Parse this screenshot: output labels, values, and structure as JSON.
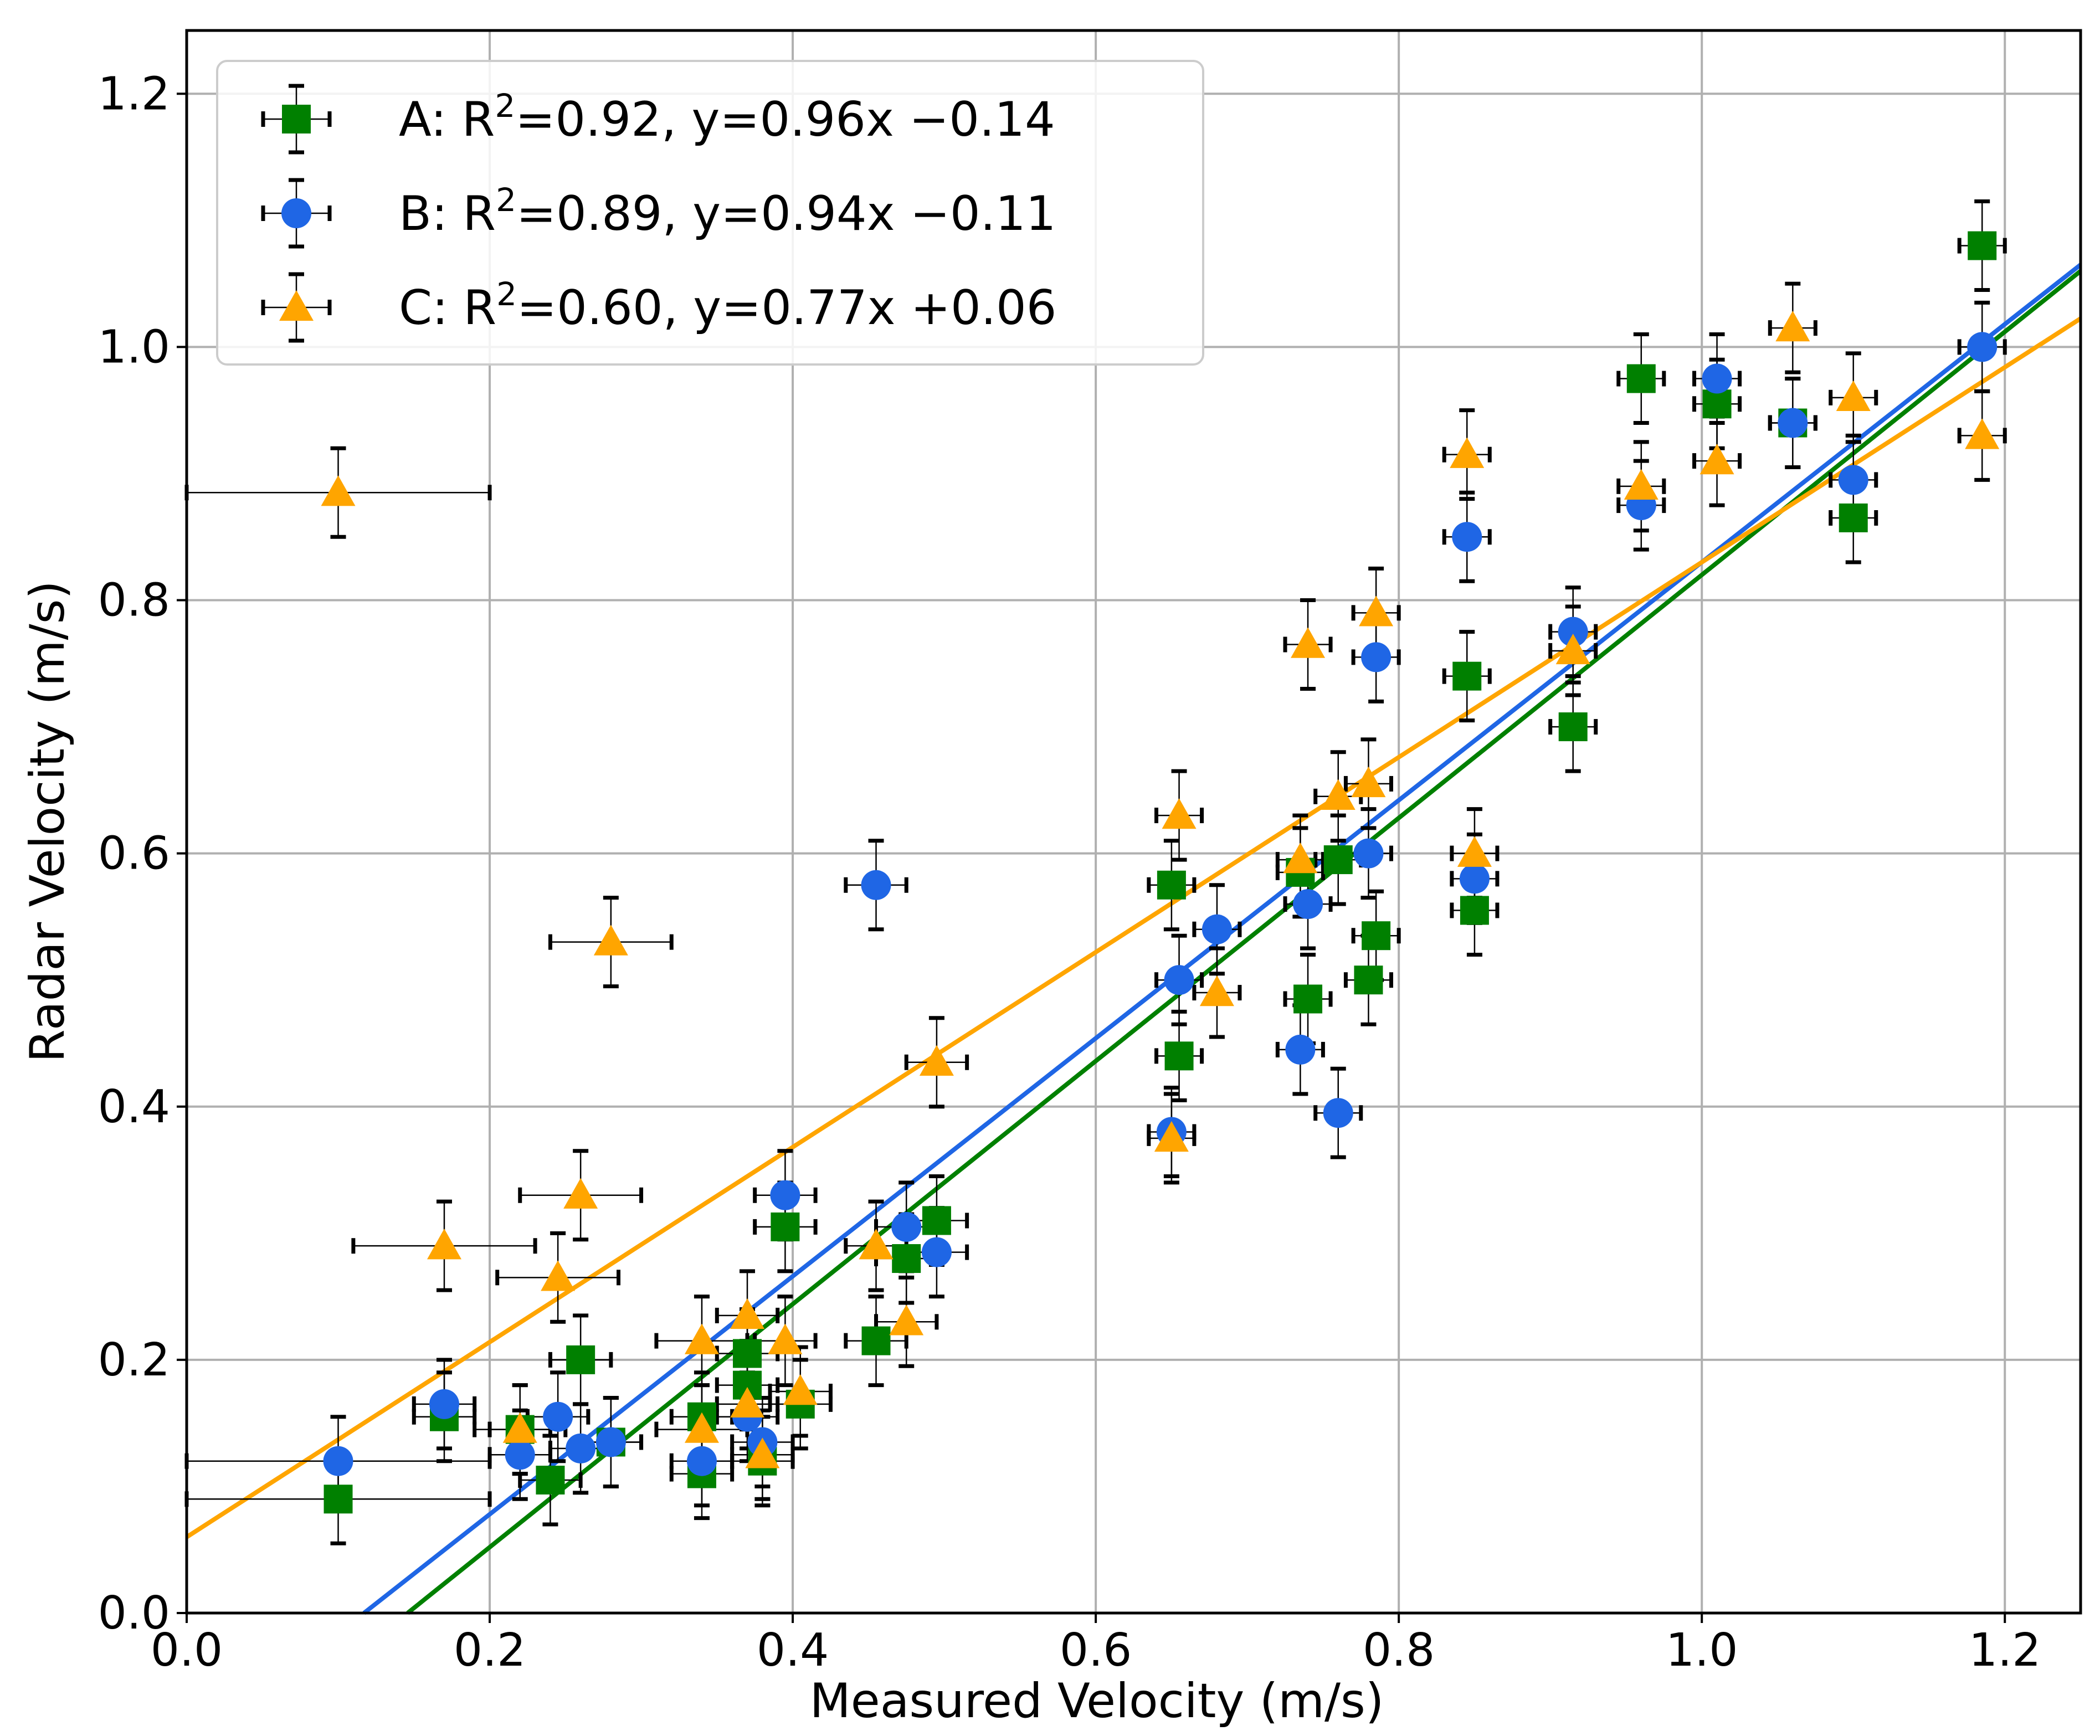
{
  "chart_data": {
    "type": "scatter",
    "xlabel": "Measured Velocity (m/s)",
    "ylabel": "Radar Velocity (m/s)",
    "xlim": [
      0.0,
      1.25
    ],
    "ylim": [
      0.0,
      1.25
    ],
    "xticks": [
      "0.0",
      "0.2",
      "0.4",
      "0.6",
      "0.8",
      "1.0",
      "1.2"
    ],
    "yticks": [
      "0.0",
      "0.2",
      "0.4",
      "0.6",
      "0.8",
      "1.0",
      "1.2"
    ],
    "grid": true,
    "legend_position": "top-left",
    "series": [
      {
        "name": "A",
        "color": "#008000",
        "marker": "square",
        "legend_prefix": "A: R",
        "r2": "=0.92, y=0.96x −0.14",
        "fit": {
          "slope": 0.96,
          "intercept": -0.14
        },
        "points": [
          [
            0.1,
            0.09,
            0.1
          ],
          [
            0.17,
            0.155,
            0.02
          ],
          [
            0.22,
            0.145,
            0.02
          ],
          [
            0.24,
            0.105,
            0.02
          ],
          [
            0.26,
            0.2,
            0.02
          ],
          [
            0.28,
            0.135,
            0.02
          ],
          [
            0.34,
            0.155,
            0.02
          ],
          [
            0.34,
            0.11,
            0.02
          ],
          [
            0.37,
            0.205,
            0.02
          ],
          [
            0.37,
            0.18,
            0.02
          ],
          [
            0.38,
            0.12,
            0.02
          ],
          [
            0.395,
            0.305,
            0.02
          ],
          [
            0.405,
            0.165,
            0.02
          ],
          [
            0.455,
            0.215,
            0.02
          ],
          [
            0.475,
            0.28,
            0.02
          ],
          [
            0.495,
            0.31,
            0.02
          ],
          [
            0.65,
            0.575,
            0.015
          ],
          [
            0.655,
            0.44,
            0.015
          ],
          [
            0.74,
            0.485,
            0.015
          ],
          [
            0.735,
            0.585,
            0.015
          ],
          [
            0.76,
            0.595,
            0.015
          ],
          [
            0.78,
            0.5,
            0.015
          ],
          [
            0.785,
            0.535,
            0.015
          ],
          [
            0.845,
            0.74,
            0.015
          ],
          [
            0.85,
            0.555,
            0.015
          ],
          [
            0.915,
            0.7,
            0.015
          ],
          [
            0.96,
            0.975,
            0.015
          ],
          [
            1.01,
            0.955,
            0.015
          ],
          [
            1.06,
            0.94,
            0.015
          ],
          [
            1.1,
            0.865,
            0.015
          ],
          [
            1.185,
            1.08,
            0.015
          ]
        ]
      },
      {
        "name": "B",
        "color": "#1f66e5",
        "marker": "circle",
        "legend_prefix": "B: R",
        "r2": "=0.89, y=0.94x −0.11",
        "fit": {
          "slope": 0.94,
          "intercept": -0.11
        },
        "points": [
          [
            0.1,
            0.12,
            0.1
          ],
          [
            0.17,
            0.165,
            0.02
          ],
          [
            0.22,
            0.125,
            0.02
          ],
          [
            0.245,
            0.155,
            0.02
          ],
          [
            0.26,
            0.13,
            0.02
          ],
          [
            0.28,
            0.135,
            0.02
          ],
          [
            0.34,
            0.12,
            0.02
          ],
          [
            0.37,
            0.155,
            0.02
          ],
          [
            0.38,
            0.135,
            0.02
          ],
          [
            0.395,
            0.33,
            0.02
          ],
          [
            0.455,
            0.575,
            0.02
          ],
          [
            0.475,
            0.305,
            0.02
          ],
          [
            0.495,
            0.285,
            0.02
          ],
          [
            0.65,
            0.38,
            0.015
          ],
          [
            0.655,
            0.5,
            0.015
          ],
          [
            0.68,
            0.54,
            0.015
          ],
          [
            0.735,
            0.445,
            0.015
          ],
          [
            0.74,
            0.56,
            0.015
          ],
          [
            0.76,
            0.395,
            0.015
          ],
          [
            0.78,
            0.6,
            0.015
          ],
          [
            0.785,
            0.755,
            0.015
          ],
          [
            0.845,
            0.85,
            0.015
          ],
          [
            0.85,
            0.58,
            0.015
          ],
          [
            0.915,
            0.775,
            0.015
          ],
          [
            0.96,
            0.875,
            0.015
          ],
          [
            1.01,
            0.975,
            0.015
          ],
          [
            1.06,
            0.94,
            0.015
          ],
          [
            1.1,
            0.895,
            0.015
          ],
          [
            1.185,
            1.0,
            0.015
          ]
        ]
      },
      {
        "name": "C",
        "color": "#ffa500",
        "marker": "triangle",
        "legend_prefix": "C: R",
        "r2": "=0.60, y=0.77x +0.06",
        "fit": {
          "slope": 0.77,
          "intercept": 0.06
        },
        "points": [
          [
            0.1,
            0.885,
            0.1
          ],
          [
            0.17,
            0.29,
            0.06
          ],
          [
            0.22,
            0.145,
            0.03
          ],
          [
            0.245,
            0.265,
            0.04
          ],
          [
            0.26,
            0.33,
            0.04
          ],
          [
            0.28,
            0.53,
            0.04
          ],
          [
            0.34,
            0.215,
            0.03
          ],
          [
            0.34,
            0.145,
            0.03
          ],
          [
            0.37,
            0.235,
            0.02
          ],
          [
            0.37,
            0.165,
            0.02
          ],
          [
            0.38,
            0.125,
            0.02
          ],
          [
            0.395,
            0.215,
            0.02
          ],
          [
            0.405,
            0.175,
            0.02
          ],
          [
            0.455,
            0.29,
            0.02
          ],
          [
            0.475,
            0.23,
            0.02
          ],
          [
            0.495,
            0.435,
            0.02
          ],
          [
            0.65,
            0.375,
            0.015
          ],
          [
            0.655,
            0.63,
            0.015
          ],
          [
            0.68,
            0.49,
            0.015
          ],
          [
            0.735,
            0.595,
            0.015
          ],
          [
            0.74,
            0.765,
            0.015
          ],
          [
            0.76,
            0.645,
            0.015
          ],
          [
            0.78,
            0.655,
            0.015
          ],
          [
            0.785,
            0.79,
            0.015
          ],
          [
            0.845,
            0.915,
            0.015
          ],
          [
            0.85,
            0.6,
            0.015
          ],
          [
            0.915,
            0.76,
            0.015
          ],
          [
            0.96,
            0.89,
            0.015
          ],
          [
            1.01,
            0.91,
            0.015
          ],
          [
            1.06,
            1.015,
            0.015
          ],
          [
            1.1,
            0.96,
            0.015
          ],
          [
            1.185,
            0.93,
            0.015
          ]
        ]
      }
    ],
    "y_error": 0.035
  }
}
